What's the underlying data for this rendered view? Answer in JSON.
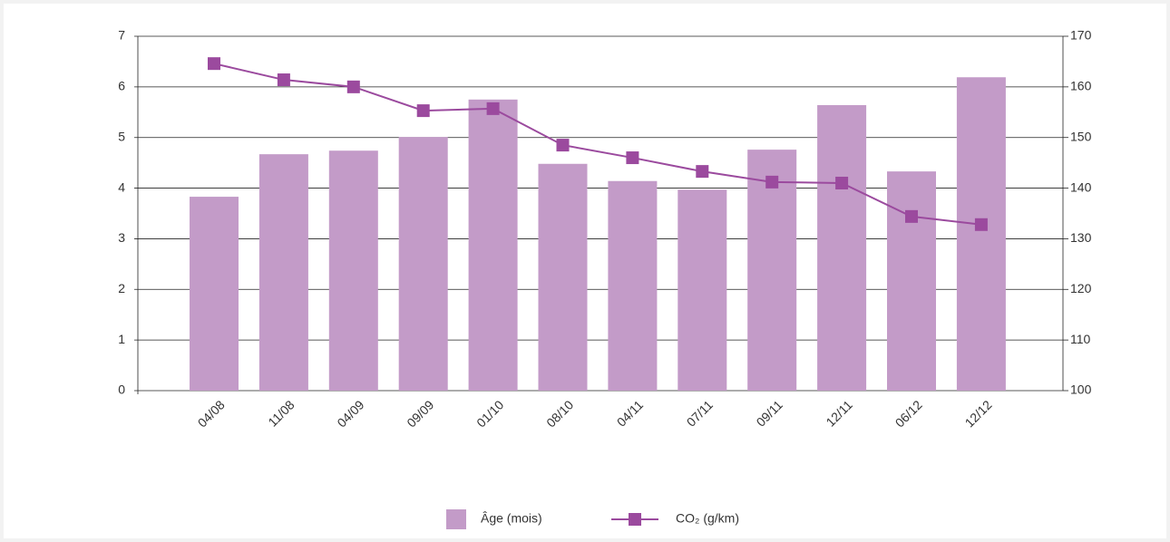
{
  "chart_data": {
    "type": "bar_line",
    "categories": [
      "04/08",
      "11/08",
      "04/09",
      "09/09",
      "01/10",
      "08/10",
      "04/11",
      "07/11",
      "09/11",
      "12/11",
      "06/12",
      "12/12"
    ],
    "series": [
      {
        "name": "Âge (mois)",
        "color": "#c39bc8",
        "type": "bar",
        "values": [
          3.83,
          4.67,
          4.74,
          5.01,
          5.75,
          4.48,
          4.14,
          3.97,
          4.76,
          5.64,
          4.33,
          6.19
        ]
      },
      {
        "name": "CO₂ (g/km)",
        "color": "#9b4a9e",
        "type": "line",
        "axis": "y2",
        "values": [
          164.6,
          161.4,
          160.0,
          155.3,
          155.7,
          148.5,
          146.0,
          143.3,
          141.2,
          141.0,
          134.4,
          132.8
        ]
      }
    ],
    "ylim": [
      0,
      7
    ],
    "yticks": [
      0,
      1,
      2,
      3,
      4,
      5,
      6,
      7
    ],
    "y2lim": [
      100,
      170
    ],
    "y2ticks": [
      100,
      110,
      120,
      130,
      140,
      150,
      160,
      170
    ],
    "grid": true,
    "legend": "bottom"
  }
}
